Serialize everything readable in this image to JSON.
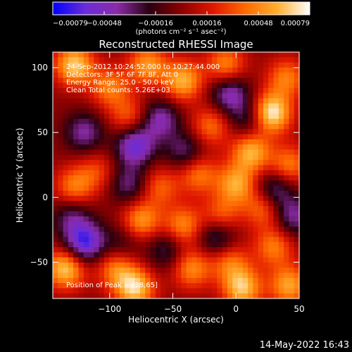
{
  "chart_data": {
    "type": "heatmap",
    "title": "Reconstructed RHESSI Image",
    "xlabel": "Heliocentric X (arcsec)",
    "ylabel": "Heliocentric Y (arcsec)",
    "xlim": [
      -145,
      50
    ],
    "ylim": [
      -78,
      112
    ],
    "x_ticks": [
      -100,
      -50,
      0,
      50
    ],
    "x_tick_labels": [
      "−100",
      "−50",
      "0",
      "50"
    ],
    "y_ticks": [
      -50,
      0,
      50,
      100
    ],
    "y_tick_labels": [
      "−50",
      "0",
      "50",
      "100"
    ],
    "colorbar": {
      "min": -0.00079,
      "max": 0.00079,
      "ticks": [
        "−0.00079",
        "−0.00048",
        "−0.00016",
        "0.00016",
        "0.00048",
        "0.00079"
      ],
      "unit_label": "(photons cm⁻² s⁻¹ asec⁻²)",
      "colors": [
        "#0000ff",
        "#6a2cd8",
        "#8a2ba8",
        "#2a0010",
        "#8b0000",
        "#e01800",
        "#ff6a00",
        "#ffb030",
        "#ffffff"
      ]
    },
    "annotations": [
      "24-Sep-2012 10:24:52.000 to 10:27:44.000",
      "Detectors: 3F 5F 6F 7F 8F, Att 0",
      "Energy Range: 25.0 - 50.0 keV",
      "Clean     Total counts: 5.26E+03"
    ],
    "peak_label": "Position of Peak = [28,65]",
    "peak": [
      28,
      65
    ],
    "blobs": [
      {
        "x": -128,
        "y": 102,
        "v": 0.85
      },
      {
        "x": -100,
        "y": 85,
        "v": 0.55
      },
      {
        "x": -70,
        "y": 102,
        "v": 0.65
      },
      {
        "x": -42,
        "y": 90,
        "v": 0.75
      },
      {
        "x": -8,
        "y": 102,
        "v": 0.6
      },
      {
        "x": 28,
        "y": 65,
        "v": 1.0
      },
      {
        "x": 40,
        "y": 92,
        "v": 0.55
      },
      {
        "x": -85,
        "y": 62,
        "v": 0.45
      },
      {
        "x": -20,
        "y": 55,
        "v": 0.5
      },
      {
        "x": 12,
        "y": 35,
        "v": 0.75
      },
      {
        "x": 42,
        "y": 25,
        "v": 0.55
      },
      {
        "x": -128,
        "y": 8,
        "v": 0.55
      },
      {
        "x": -110,
        "y": 20,
        "v": 0.35
      },
      {
        "x": -60,
        "y": 8,
        "v": 0.45
      },
      {
        "x": -30,
        "y": 18,
        "v": 0.55
      },
      {
        "x": 0,
        "y": 10,
        "v": 0.7
      },
      {
        "x": -75,
        "y": -18,
        "v": 0.65
      },
      {
        "x": -42,
        "y": -22,
        "v": 0.6
      },
      {
        "x": -12,
        "y": -15,
        "v": 0.5
      },
      {
        "x": 22,
        "y": -8,
        "v": 0.55
      },
      {
        "x": 30,
        "y": -38,
        "v": 0.55
      },
      {
        "x": -135,
        "y": -55,
        "v": 0.85
      },
      {
        "x": -95,
        "y": -55,
        "v": 0.55
      },
      {
        "x": -80,
        "y": -70,
        "v": 0.85
      },
      {
        "x": -35,
        "y": -55,
        "v": 0.6
      },
      {
        "x": -5,
        "y": -50,
        "v": 0.5
      },
      {
        "x": 5,
        "y": -70,
        "v": 0.8
      },
      {
        "x": 42,
        "y": -68,
        "v": 0.7
      },
      {
        "x": -120,
        "y": 50,
        "v": -0.5
      },
      {
        "x": -80,
        "y": 40,
        "v": -0.75
      },
      {
        "x": -60,
        "y": 60,
        "v": -0.55
      },
      {
        "x": -5,
        "y": 80,
        "v": -0.6
      },
      {
        "x": 10,
        "y": 60,
        "v": -0.4
      },
      {
        "x": -40,
        "y": 35,
        "v": -0.45
      },
      {
        "x": -130,
        "y": -15,
        "v": -0.4
      },
      {
        "x": -85,
        "y": 10,
        "v": -0.45
      },
      {
        "x": -120,
        "y": -35,
        "v": -0.85
      },
      {
        "x": -55,
        "y": -40,
        "v": -0.4
      },
      {
        "x": -15,
        "y": -30,
        "v": -0.55
      },
      {
        "x": 30,
        "y": 5,
        "v": -0.55
      },
      {
        "x": 45,
        "y": -15,
        "v": -0.5
      },
      {
        "x": -90,
        "y": -35,
        "v": -0.3
      }
    ]
  },
  "footer": {
    "timestamp": "14-May-2022 16:43"
  }
}
